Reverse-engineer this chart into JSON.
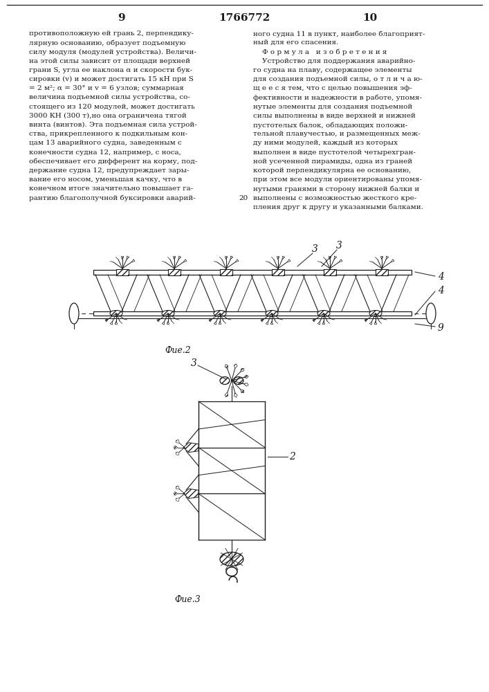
{
  "page_number_left": "9",
  "page_number_right": "10",
  "patent_number": "1766772",
  "text_left": "противоположную ей грань 2, перпендику-\nлярную основанию, образует подъемную\nсилу модуля (модулей устройства). Величи-\nна этой силы зависит от площади верхней\nграни S, угла ее наклона α и скорости бук-\nсировки (v) и может достигать 15 кН при S\n= 2 м²; α = 30° и v = 6 узлов; суммарная\nвеличина подъемной силы устройства, со-\nстоящего из 120 модулей, может достигать\n3000 КН (300 т),но она ограничена тягой\nвинта (винтов). Эта подъемная сила устрой-\nства, прикрепленного к подкильным кон-\nцам 13 аварийного судна, заведенным с\nконечности судна 12, например, с носа,\nобеспечивает его дифферент на корму, под-\nдержание судна 12, предупреждает зары-\nвание его носом, уменьшая качку, что в\nконечном итоге значительно повышает га-\nрантию благополучной буксировки аварий-",
  "text_right": "ного судна 11 в пункт, наиболее благоприят-\nный для его спасения.\n    Ф о р м у л а   и з о б р е т е н и я\n    Устройство для поддержания аварийно-\nго судна на плаву, содержащее элементы\nдля создания подъемной силы, о т л и ч а ю-\nщ е е с я тем, что с целью повышения эф-\nфективности и надежности в работе, упомя-\nнутые элементы для создания подъемной\nсилы выполнены в виде верхней и нижней\nпустотелых балок, обладающих положи-\nтельной плавучестью, и размещенных меж-\nду ними модулей, каждый из которых\nвыполнен в виде пустотелой четырехгран-\nной усеченной пирамиды, одна из граней\nкоторой перпендикулярна ее основанию,\nпри этом все модули ориентированы упомя-\nнутыми гранями в сторону нижней балки и\nвыполнены с возможностью жесткого кре-\nпления друг к другу и указанными балками.",
  "fig2_label": "Фue.2",
  "fig3_label": "Фue.3",
  "bg_color": "#ffffff",
  "line_color": "#1a1a1a",
  "text_color": "#1a1a1a",
  "line_number_20": "20"
}
